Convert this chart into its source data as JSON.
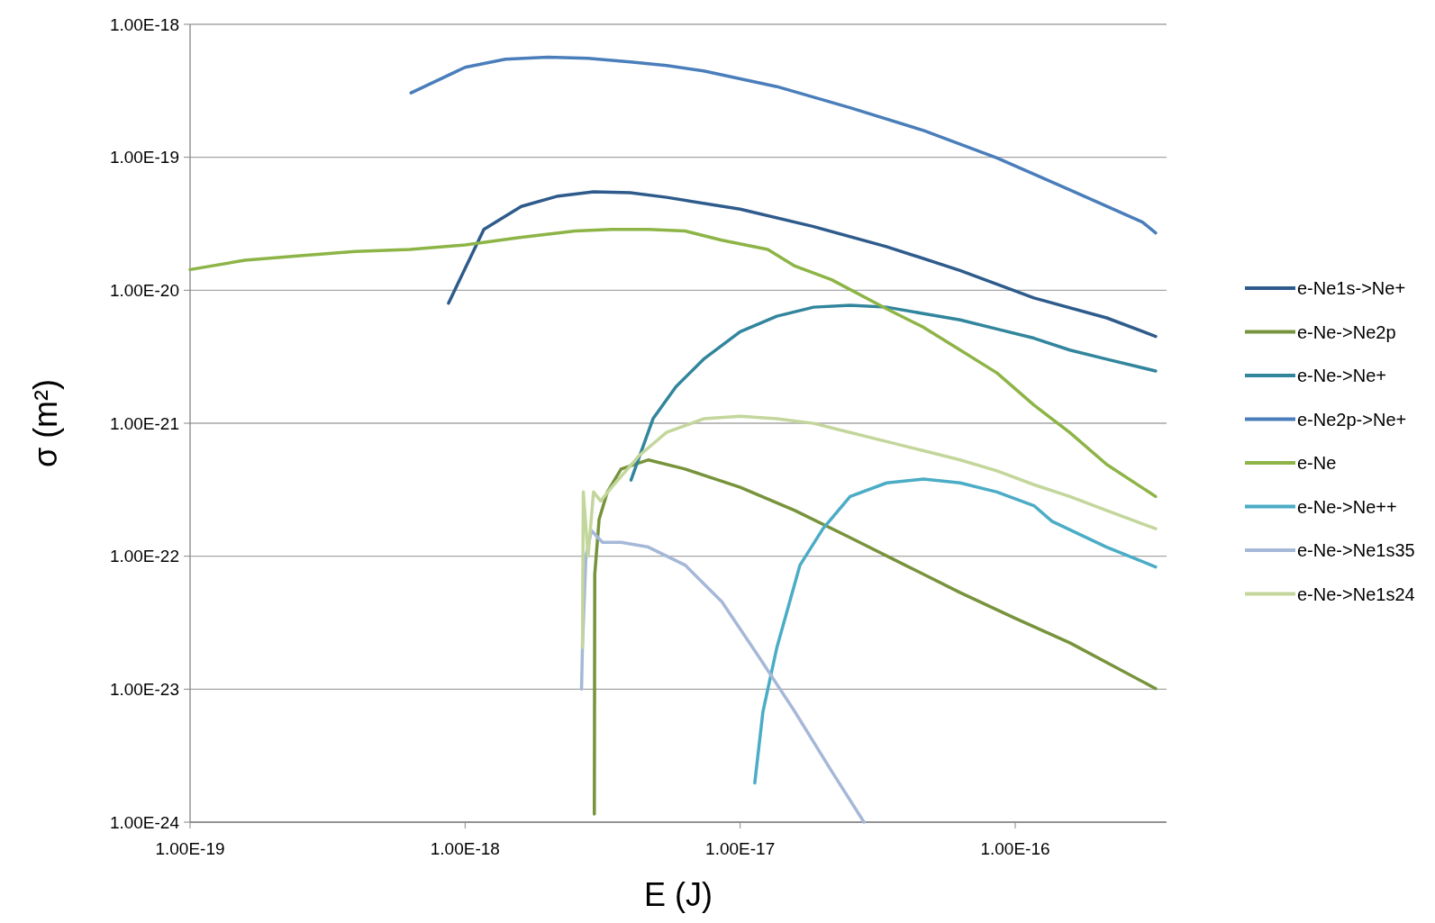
{
  "chart_data": {
    "type": "line",
    "xlabel": "E (J)",
    "ylabel": "σ (m²)",
    "log": "xy",
    "grid": "y",
    "legend": "right",
    "marker": "none",
    "line_style": "solid",
    "xlim": [
      1e-19,
      3.55e-16
    ],
    "xticks": [
      {
        "value": 1e-19,
        "label": "1.00E-19"
      },
      {
        "value": 1e-18,
        "label": "1.00E-18"
      },
      {
        "value": 1e-17,
        "label": "1.00E-17"
      },
      {
        "value": 1e-16,
        "label": "1.00E-16"
      }
    ],
    "ylim": [
      1e-24,
      1e-18
    ],
    "yticks": [
      {
        "value": 1e-24,
        "label": "1.00E-24"
      },
      {
        "value": 1e-23,
        "label": "1.00E-23"
      },
      {
        "value": 1e-22,
        "label": "1.00E-22"
      },
      {
        "value": 1e-21,
        "label": "1.00E-21"
      },
      {
        "value": 1e-20,
        "label": "1.00E-20"
      },
      {
        "value": 1e-19,
        "label": "1.00E-19"
      },
      {
        "value": 1e-18,
        "label": "1.00E-18"
      }
    ],
    "series": [
      {
        "name": "e-Ne1s->Ne+",
        "color": "#2e5b8c",
        "x": [
          8.7e-19,
          1.17e-18,
          1.6e-18,
          2.15e-18,
          2.93e-18,
          3.98e-18,
          5.4e-18,
          1e-17,
          1.85e-17,
          3.4e-17,
          6.3e-17,
          1.17e-16,
          2.15e-16,
          3.24e-16
        ],
        "values": [
          8e-21,
          2.87e-20,
          4.27e-20,
          5.08e-20,
          5.5e-20,
          5.42e-20,
          5e-20,
          4.07e-20,
          3.01e-20,
          2.13e-20,
          1.41e-20,
          8.75e-21,
          6.2e-21,
          4.5e-21
        ]
      },
      {
        "name": "e-Ne->Ne2p",
        "color": "#77933c",
        "x": [
          2.95e-18,
          2.96e-18,
          3.07e-18,
          3.29e-18,
          3.69e-18,
          4.64e-18,
          6.31e-18,
          1e-17,
          1.58e-17,
          2.51e-17,
          3.98e-17,
          6.31e-17,
          1e-16,
          1.58e-16,
          3.24e-16
        ],
        "values": [
          1.15e-24,
          7.3e-23,
          1.89e-22,
          3.04e-22,
          4.52e-22,
          5.3e-22,
          4.52e-22,
          3.3e-22,
          2.21e-22,
          1.38e-22,
          8.57e-23,
          5.32e-23,
          3.41e-23,
          2.23e-23,
          1.01e-23
        ]
      },
      {
        "name": "e-Ne->Ne+",
        "color": "#31859c",
        "x": [
          4.01e-18,
          4.82e-18,
          5.84e-18,
          7.36e-18,
          1e-17,
          1.36e-17,
          1.85e-17,
          2.51e-17,
          3.41e-17,
          4.64e-17,
          6.31e-17,
          8.58e-17,
          1.17e-16,
          1.58e-16,
          2.15e-16,
          3.24e-16
        ],
        "values": [
          3.74e-22,
          1.08e-21,
          1.88e-21,
          3.03e-21,
          4.88e-21,
          6.38e-21,
          7.46e-21,
          7.71e-21,
          7.46e-21,
          6.68e-21,
          5.98e-21,
          5.11e-21,
          4.36e-21,
          3.55e-21,
          3.03e-21,
          2.47e-21
        ]
      },
      {
        "name": "e-Ne2p->Ne+",
        "color": "#4a7ebb",
        "x": [
          6.36e-19,
          1e-18,
          1.4e-18,
          2e-18,
          2.8e-18,
          3.98e-18,
          5.4e-18,
          7.36e-18,
          1.36e-17,
          2.51e-17,
          4.64e-17,
          8.58e-17,
          1.58e-16,
          2.9e-16,
          3.24e-16
        ],
        "values": [
          3.05e-19,
          4.75e-19,
          5.47e-19,
          5.65e-19,
          5.56e-19,
          5.22e-19,
          4.9e-19,
          4.46e-19,
          3.4e-19,
          2.36e-19,
          1.59e-19,
          9.9e-20,
          5.68e-20,
          3.26e-20,
          2.7e-20
        ]
      },
      {
        "name": "e-Ne",
        "color": "#8db446",
        "x": [
          1e-19,
          1.58e-19,
          2.51e-19,
          3.98e-19,
          6.31e-19,
          1e-18,
          1.58e-18,
          2.51e-18,
          3.41e-18,
          4.64e-18,
          6.31e-18,
          8.58e-18,
          1.26e-17,
          1.58e-17,
          2.15e-17,
          3.41e-17,
          4.64e-17,
          6.31e-17,
          8.58e-17,
          1.17e-16,
          1.58e-16,
          2.15e-16,
          3.24e-16
        ],
        "values": [
          1.43e-20,
          1.68e-20,
          1.82e-20,
          1.96e-20,
          2.03e-20,
          2.19e-20,
          2.49e-20,
          2.79e-20,
          2.87e-20,
          2.87e-20,
          2.79e-20,
          2.38e-20,
          2.03e-20,
          1.52e-20,
          1.2e-20,
          7.24e-21,
          5.27e-21,
          3.55e-21,
          2.39e-21,
          1.37e-21,
          8.5e-22,
          4.9e-22,
          2.81e-22
        ]
      },
      {
        "name": "e-Ne->Ne++",
        "color": "#4bacc6",
        "x": [
          1.13e-17,
          1.21e-17,
          1.36e-17,
          1.65e-17,
          2e-17,
          2.51e-17,
          3.41e-17,
          4.64e-17,
          6.31e-17,
          8.58e-17,
          1.17e-16,
          1.36e-16,
          2.15e-16,
          3.24e-16
        ],
        "values": [
          1.97e-24,
          6.78e-24,
          2.06e-23,
          8.57e-23,
          1.61e-22,
          2.81e-22,
          3.56e-22,
          3.8e-22,
          3.56e-22,
          3.04e-22,
          2.4e-22,
          1.83e-22,
          1.17e-22,
          8.3e-23
        ]
      },
      {
        "name": "e-Ne->Ne1s35",
        "color": "#a5b8d8",
        "x": [
          2.65e-18,
          2.67e-18,
          2.75e-18,
          2.88e-18,
          3.04e-18,
          3.16e-18,
          3.69e-18,
          4.64e-18,
          6.31e-18,
          8.58e-18,
          1.17e-17,
          1.58e-17,
          2.15e-17,
          2.82e-17
        ],
        "values": [
          1e-23,
          2.06e-23,
          1e-22,
          1.56e-22,
          1.38e-22,
          1.27e-22,
          1.27e-22,
          1.17e-22,
          8.57e-23,
          4.54e-23,
          1.75e-23,
          6.78e-24,
          2.42e-24,
          1e-24
        ]
      },
      {
        "name": "e-Ne->Ne1s24",
        "color": "#c3d69b",
        "x": [
          2.67e-18,
          2.69e-18,
          2.8e-18,
          2.93e-18,
          3.11e-18,
          3.41e-18,
          4.3e-18,
          5.4e-18,
          7.36e-18,
          1e-17,
          1.36e-17,
          1.85e-17,
          2.51e-17,
          3.41e-17,
          4.64e-17,
          6.31e-17,
          8.58e-17,
          1.17e-16,
          1.58e-16,
          2.15e-16,
          3.24e-16
        ],
        "values": [
          2.06e-23,
          3.04e-22,
          1e-22,
          3.04e-22,
          2.6e-22,
          3.3e-22,
          5.73e-22,
          8.53e-22,
          1.08e-21,
          1.13e-21,
          1.08e-21,
          9.98e-22,
          8.53e-22,
          7.28e-22,
          6.21e-22,
          5.3e-22,
          4.38e-22,
          3.45e-22,
          2.81e-22,
          2.21e-22,
          1.61e-22
        ]
      }
    ]
  }
}
